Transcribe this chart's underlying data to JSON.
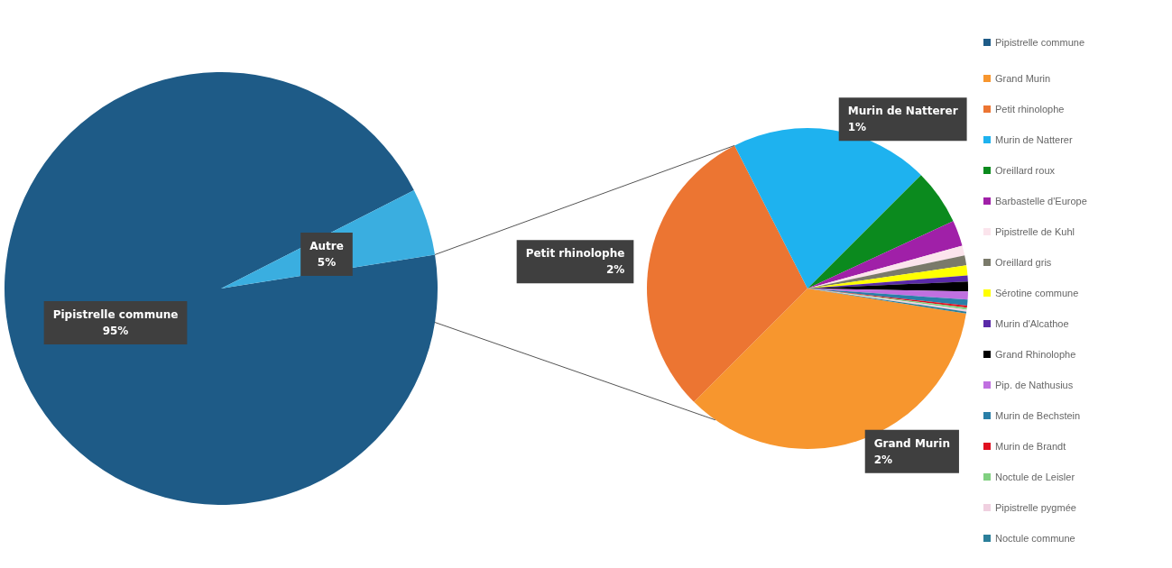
{
  "chart_data": [
    {
      "type": "pie",
      "categories": [
        "Pipistrelle commune",
        "Autre"
      ],
      "values": [
        95,
        5
      ],
      "colors": [
        "#1e5b87",
        "#3aaee0"
      ],
      "value_labels": [
        "95%",
        "5%"
      ],
      "legend": "top right"
    },
    {
      "type": "pie",
      "categories": [
        "Grand Murin",
        "Petit rhinolophe",
        "Murin de Natterer",
        "Oreillard roux",
        "Barbastelle d'Europe",
        "Pipistrelle de Kuhl",
        "Oreillard gris",
        "Sérotine commune",
        "Murin d'Alcathoe",
        "Grand Rhinolophe",
        "Pip. de Nathusius",
        "Murin de Bechstein",
        "Murin de Brandt",
        "Noctule de Leisler",
        "Pipistrelle pygmée",
        "Noctule commune"
      ],
      "values": [
        1.75,
        1.5,
        1.0,
        0.28,
        0.13,
        0.05,
        0.05,
        0.05,
        0.03,
        0.05,
        0.04,
        0.03,
        0.01,
        0.01,
        0.01,
        0.01
      ],
      "colors": [
        "#f7962e",
        "#ec7532",
        "#1eb2ef",
        "#0b8a1e",
        "#a020a8",
        "#fbe4ec",
        "#7a7a6a",
        "#ffff00",
        "#5a2aa8",
        "#000000",
        "#c070e0",
        "#2a7fa8",
        "#e01020",
        "#80d080",
        "#f0d0e0",
        "#2b7f9a"
      ],
      "value_labels": [
        "2%",
        "2%",
        "1%",
        null,
        null,
        null,
        null,
        null,
        null,
        null,
        null,
        null,
        null,
        null,
        null,
        null
      ],
      "legend": "right"
    }
  ]
}
